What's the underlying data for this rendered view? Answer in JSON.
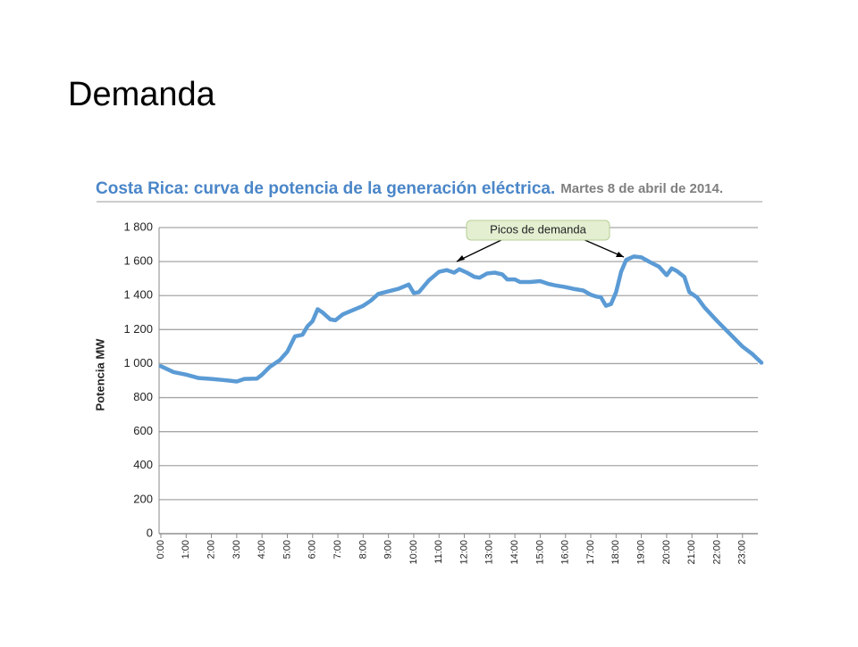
{
  "slide_title": "Demanda",
  "chart_data": {
    "type": "line",
    "title": "Costa Rica: curva de potencia de la generación eléctrica.",
    "subtitle": "Martes 8 de abril de 2014.",
    "y_label": "Potencia MW",
    "annotation": "Picos de demanda",
    "grid": true,
    "xlim": [
      0,
      23.75
    ],
    "ylim": [
      0,
      1800
    ],
    "xticks": [
      {
        "value": 0,
        "label": "0:00"
      },
      {
        "value": 1,
        "label": "1:00"
      },
      {
        "value": 2,
        "label": "2:00"
      },
      {
        "value": 3,
        "label": "3:00"
      },
      {
        "value": 4,
        "label": "4:00"
      },
      {
        "value": 5,
        "label": "5:00"
      },
      {
        "value": 6,
        "label": "6:00"
      },
      {
        "value": 7,
        "label": "7:00"
      },
      {
        "value": 8,
        "label": "8:00"
      },
      {
        "value": 9,
        "label": "9:00"
      },
      {
        "value": 10,
        "label": "10:00"
      },
      {
        "value": 11,
        "label": "11:00"
      },
      {
        "value": 12,
        "label": "12:00"
      },
      {
        "value": 13,
        "label": "13:00"
      },
      {
        "value": 14,
        "label": "14:00"
      },
      {
        "value": 15,
        "label": "15:00"
      },
      {
        "value": 16,
        "label": "16:00"
      },
      {
        "value": 17,
        "label": "17:00"
      },
      {
        "value": 18,
        "label": "18:00"
      },
      {
        "value": 19,
        "label": "19:00"
      },
      {
        "value": 20,
        "label": "20:00"
      },
      {
        "value": 21,
        "label": "21:00"
      },
      {
        "value": 22,
        "label": "22:00"
      },
      {
        "value": 23,
        "label": "23:00"
      }
    ],
    "yticks": [
      0,
      200,
      400,
      600,
      800,
      {
        "value": 1000,
        "label": "1 000"
      },
      {
        "value": 1200,
        "label": "1 200"
      },
      {
        "value": 1400,
        "label": "1 400"
      },
      {
        "value": 1600,
        "label": "1 600"
      },
      {
        "value": 1800,
        "label": "1 800"
      }
    ],
    "x": [
      0,
      0.5,
      1,
      1.5,
      2,
      2.5,
      3,
      3.3,
      3.8,
      4,
      4.3,
      4.7,
      5,
      5.3,
      5.6,
      5.8,
      6,
      6.2,
      6.4,
      6.7,
      6.9,
      7.2,
      7.6,
      8,
      8.3,
      8.6,
      9,
      9.4,
      9.8,
      10,
      10.2,
      10.6,
      11,
      11.3,
      11.6,
      11.8,
      12.1,
      12.4,
      12.6,
      12.9,
      13.2,
      13.5,
      13.7,
      14,
      14.2,
      14.6,
      15,
      15.3,
      15.6,
      16,
      16.3,
      16.7,
      17,
      17.2,
      17.4,
      17.6,
      17.8,
      18,
      18.2,
      18.4,
      18.7,
      19,
      19.3,
      19.7,
      20,
      20.2,
      20.4,
      20.7,
      20.9,
      21.2,
      21.5,
      22,
      22.5,
      23,
      23.4,
      23.75
    ],
    "series": [
      {
        "color": "#5b9bd5",
        "values": [
          985,
          950,
          935,
          915,
          910,
          903,
          895,
          910,
          912,
          935,
          980,
          1020,
          1070,
          1160,
          1170,
          1220,
          1250,
          1320,
          1300,
          1260,
          1255,
          1290,
          1315,
          1340,
          1370,
          1410,
          1425,
          1440,
          1465,
          1415,
          1420,
          1490,
          1540,
          1550,
          1535,
          1555,
          1535,
          1510,
          1505,
          1530,
          1535,
          1525,
          1495,
          1495,
          1480,
          1480,
          1485,
          1470,
          1460,
          1450,
          1440,
          1430,
          1405,
          1395,
          1390,
          1340,
          1350,
          1420,
          1540,
          1610,
          1630,
          1625,
          1600,
          1570,
          1520,
          1560,
          1545,
          1510,
          1420,
          1390,
          1330,
          1250,
          1175,
          1100,
          1055,
          1005
        ]
      }
    ]
  }
}
